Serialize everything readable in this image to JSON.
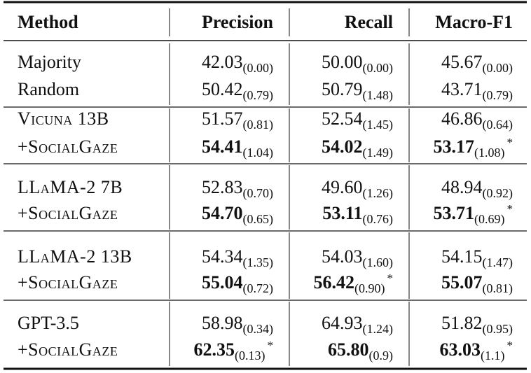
{
  "table": {
    "header": [
      "Method",
      "Precision",
      "Recall",
      "Macro-F1"
    ],
    "groups": [
      {
        "rows": [
          {
            "method": "Majority",
            "cells": [
              {
                "value": "42.03",
                "std": "(0.00)"
              },
              {
                "value": "50.00",
                "std": "(0.00)"
              },
              {
                "value": "45.67",
                "std": "(0.00)"
              }
            ]
          },
          {
            "method": "Random",
            "cells": [
              {
                "value": "50.42",
                "std": "(0.79)"
              },
              {
                "value": "50.79",
                "std": "(1.48)"
              },
              {
                "value": "43.71",
                "std": "(0.79)"
              }
            ]
          }
        ]
      },
      {
        "rows": [
          {
            "method": "Vicuna 13B",
            "small_caps": true,
            "cells": [
              {
                "value": "51.57",
                "std": "(0.81)"
              },
              {
                "value": "52.54",
                "std": "(1.45)"
              },
              {
                "value": "46.86",
                "std": "(0.64)"
              }
            ]
          },
          {
            "method": "+SocialGaze",
            "small_caps": true,
            "cells": [
              {
                "value": "54.41",
                "std": "(1.04)",
                "bold": true
              },
              {
                "value": "54.02",
                "std": "(1.49)",
                "bold": true
              },
              {
                "value": "53.17",
                "std": "(1.08)",
                "bold": true,
                "mark": "*"
              }
            ]
          }
        ]
      },
      {
        "rows": [
          {
            "method": "LLaMA-2 7B",
            "small_caps": true,
            "cells": [
              {
                "value": "52.83",
                "std": "(0.70)"
              },
              {
                "value": "49.60",
                "std": "(1.26)"
              },
              {
                "value": "48.94",
                "std": "(0.92)"
              }
            ]
          },
          {
            "method": "+SocialGaze",
            "small_caps": true,
            "cells": [
              {
                "value": "54.70",
                "std": "(0.65)",
                "bold": true
              },
              {
                "value": "53.11",
                "std": "(0.76)",
                "bold": true
              },
              {
                "value": "53.71",
                "std": "(0.69)",
                "bold": true,
                "mark": "*"
              }
            ]
          }
        ]
      },
      {
        "rows": [
          {
            "method": "LLaMA-2 13B",
            "small_caps": true,
            "cells": [
              {
                "value": "54.34",
                "std": "(1.35)"
              },
              {
                "value": "54.03",
                "std": "(1.60)"
              },
              {
                "value": "54.15",
                "std": "(1.47)"
              }
            ]
          },
          {
            "method": "+SocialGaze",
            "small_caps": true,
            "cells": [
              {
                "value": "55.04",
                "std": "(0.72)",
                "bold": true
              },
              {
                "value": "56.42",
                "std": "(0.90)",
                "bold": true,
                "mark": "*"
              },
              {
                "value": "55.07",
                "std": "(0.81)",
                "bold": true
              }
            ]
          }
        ]
      },
      {
        "rows": [
          {
            "method": "GPT-3.5",
            "cells": [
              {
                "value": "58.98",
                "std": "(0.34)"
              },
              {
                "value": "64.93",
                "std": "(1.24)"
              },
              {
                "value": "51.82",
                "std": "(0.95)"
              }
            ]
          },
          {
            "method": "+SocialGaze",
            "small_caps": true,
            "cells": [
              {
                "value": "62.35",
                "std": "(0.13)",
                "bold": true,
                "mark": "*"
              },
              {
                "value": "65.80",
                "std": "(0.9)",
                "bold": true
              },
              {
                "value": "63.03",
                "std": "(1.1)",
                "bold": true,
                "mark": "*"
              }
            ]
          }
        ]
      }
    ]
  }
}
